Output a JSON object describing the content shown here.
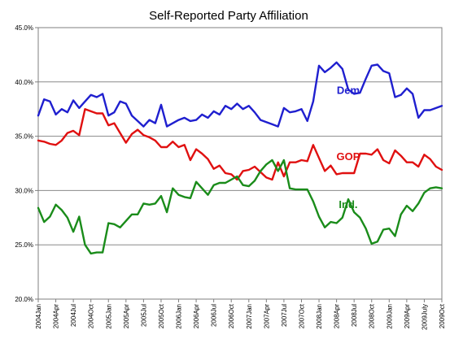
{
  "chart_data": {
    "type": "line",
    "title": "Self-Reported Party Affiliation",
    "xlabel": "",
    "ylabel": "",
    "ylim": [
      20,
      45
    ],
    "y_ticks": [
      20,
      25,
      30,
      35,
      40,
      45
    ],
    "y_tick_labels": [
      "20.0%",
      "25.0%",
      "30.0%",
      "35.0%",
      "40.0%",
      "45.0%"
    ],
    "grid": "horizontal",
    "x_start": "2004-01",
    "x_end": "2009-10",
    "x_ticks": [
      {
        "t": "2004-01",
        "label": "2004Jan"
      },
      {
        "t": "2004-04",
        "label": "2004Apr"
      },
      {
        "t": "2004-07",
        "label": "2004Jul"
      },
      {
        "t": "2004-10",
        "label": "2004Oct"
      },
      {
        "t": "2005-01",
        "label": "2005Jan"
      },
      {
        "t": "2005-04",
        "label": "2005Apr"
      },
      {
        "t": "2005-07",
        "label": "2005Jul"
      },
      {
        "t": "2005-10",
        "label": "2005Oct"
      },
      {
        "t": "2006-01",
        "label": "2006Jan"
      },
      {
        "t": "2006-04",
        "label": "2006Apr"
      },
      {
        "t": "2006-07",
        "label": "2006Jul"
      },
      {
        "t": "2006-10",
        "label": "2006Oct"
      },
      {
        "t": "2007-01",
        "label": "2007Jan"
      },
      {
        "t": "2007-04",
        "label": "2007Apr"
      },
      {
        "t": "2007-07",
        "label": "2007Jul"
      },
      {
        "t": "2007-10",
        "label": "2007Oct"
      },
      {
        "t": "2008-01",
        "label": "2008Jan"
      },
      {
        "t": "2008-04",
        "label": "2008Apr"
      },
      {
        "t": "2008-07",
        "label": "2008Jul"
      },
      {
        "t": "2008-10",
        "label": "2008Oct"
      },
      {
        "t": "2009-01",
        "label": "2009Jan"
      },
      {
        "t": "2009-04",
        "label": "2009Apr"
      },
      {
        "t": "2009-07",
        "label": "2009July"
      },
      {
        "t": "2009-10",
        "label": "2009Oct"
      }
    ],
    "series": [
      {
        "name": "Dem",
        "color": "#1f1fcf",
        "label_at": {
          "t": "2008-06",
          "v": 39.2
        },
        "points": [
          [
            "2004-01",
            36.9
          ],
          [
            "2004-02",
            38.4
          ],
          [
            "2004-03",
            38.2
          ],
          [
            "2004-04",
            37.0
          ],
          [
            "2004-05",
            37.5
          ],
          [
            "2004-06",
            37.2
          ],
          [
            "2004-07",
            38.3
          ],
          [
            "2004-08",
            37.6
          ],
          [
            "2004-09",
            38.2
          ],
          [
            "2004-10",
            38.8
          ],
          [
            "2004-11",
            38.6
          ],
          [
            "2004-12",
            38.9
          ],
          [
            "2005-01",
            36.9
          ],
          [
            "2005-02",
            37.2
          ],
          [
            "2005-03",
            38.2
          ],
          [
            "2005-04",
            38.0
          ],
          [
            "2005-05",
            36.9
          ],
          [
            "2005-06",
            36.4
          ],
          [
            "2005-07",
            35.9
          ],
          [
            "2005-08",
            36.5
          ],
          [
            "2005-09",
            36.2
          ],
          [
            "2005-10",
            37.9
          ],
          [
            "2005-11",
            35.9
          ],
          [
            "2005-12",
            36.2
          ],
          [
            "2006-01",
            36.5
          ],
          [
            "2006-02",
            36.7
          ],
          [
            "2006-03",
            36.4
          ],
          [
            "2006-04",
            36.5
          ],
          [
            "2006-05",
            37.0
          ],
          [
            "2006-06",
            36.7
          ],
          [
            "2006-07",
            37.3
          ],
          [
            "2006-08",
            37.0
          ],
          [
            "2006-09",
            37.8
          ],
          [
            "2006-10",
            37.5
          ],
          [
            "2006-11",
            38.0
          ],
          [
            "2006-12",
            37.5
          ],
          [
            "2007-01",
            37.8
          ],
          [
            "2007-02",
            37.2
          ],
          [
            "2007-03",
            36.5
          ],
          [
            "2007-04",
            36.3
          ],
          [
            "2007-05",
            36.1
          ],
          [
            "2007-06",
            35.9
          ],
          [
            "2007-07",
            37.6
          ],
          [
            "2007-08",
            37.2
          ],
          [
            "2007-09",
            37.3
          ],
          [
            "2007-10",
            37.5
          ],
          [
            "2007-11",
            36.4
          ],
          [
            "2007-12",
            38.2
          ],
          [
            "2008-01",
            41.5
          ],
          [
            "2008-02",
            40.9
          ],
          [
            "2008-03",
            41.3
          ],
          [
            "2008-04",
            41.8
          ],
          [
            "2008-05",
            41.2
          ],
          [
            "2008-06",
            39.3
          ],
          [
            "2008-07",
            38.9
          ],
          [
            "2008-08",
            39.0
          ],
          [
            "2008-09",
            40.3
          ],
          [
            "2008-10",
            41.5
          ],
          [
            "2008-11",
            41.6
          ],
          [
            "2008-12",
            41.0
          ],
          [
            "2009-01",
            40.8
          ],
          [
            "2009-02",
            38.6
          ],
          [
            "2009-03",
            38.8
          ],
          [
            "2009-04",
            39.4
          ],
          [
            "2009-05",
            38.9
          ],
          [
            "2009-06",
            36.7
          ],
          [
            "2009-07",
            37.4
          ],
          [
            "2009-08",
            37.4
          ],
          [
            "2009-09",
            37.6
          ],
          [
            "2009-10",
            37.8
          ]
        ]
      },
      {
        "name": "GOP",
        "color": "#e01010",
        "label_at": {
          "t": "2008-06",
          "v": 33.1
        },
        "points": [
          [
            "2004-01",
            34.6
          ],
          [
            "2004-02",
            34.5
          ],
          [
            "2004-03",
            34.3
          ],
          [
            "2004-04",
            34.2
          ],
          [
            "2004-05",
            34.6
          ],
          [
            "2004-06",
            35.3
          ],
          [
            "2004-07",
            35.5
          ],
          [
            "2004-08",
            35.1
          ],
          [
            "2004-09",
            37.5
          ],
          [
            "2004-10",
            37.3
          ],
          [
            "2004-11",
            37.1
          ],
          [
            "2004-12",
            37.1
          ],
          [
            "2005-01",
            36.0
          ],
          [
            "2005-02",
            36.2
          ],
          [
            "2005-03",
            35.3
          ],
          [
            "2005-04",
            34.4
          ],
          [
            "2005-05",
            35.2
          ],
          [
            "2005-06",
            35.6
          ],
          [
            "2005-07",
            35.1
          ],
          [
            "2005-08",
            34.9
          ],
          [
            "2005-09",
            34.6
          ],
          [
            "2005-10",
            34.0
          ],
          [
            "2005-11",
            34.0
          ],
          [
            "2005-12",
            34.5
          ],
          [
            "2006-01",
            34.0
          ],
          [
            "2006-02",
            34.2
          ],
          [
            "2006-03",
            32.8
          ],
          [
            "2006-04",
            33.8
          ],
          [
            "2006-05",
            33.4
          ],
          [
            "2006-06",
            32.9
          ],
          [
            "2006-07",
            32.0
          ],
          [
            "2006-08",
            32.3
          ],
          [
            "2006-09",
            31.6
          ],
          [
            "2006-10",
            31.5
          ],
          [
            "2006-11",
            31.0
          ],
          [
            "2006-12",
            31.8
          ],
          [
            "2007-01",
            31.9
          ],
          [
            "2007-02",
            32.2
          ],
          [
            "2007-03",
            31.7
          ],
          [
            "2007-04",
            31.2
          ],
          [
            "2007-05",
            31.0
          ],
          [
            "2007-06",
            32.6
          ],
          [
            "2007-07",
            31.3
          ],
          [
            "2007-08",
            32.6
          ],
          [
            "2007-09",
            32.6
          ],
          [
            "2007-10",
            32.8
          ],
          [
            "2007-11",
            32.7
          ],
          [
            "2007-12",
            34.2
          ],
          [
            "2008-01",
            33.0
          ],
          [
            "2008-02",
            31.8
          ],
          [
            "2008-03",
            32.3
          ],
          [
            "2008-04",
            31.5
          ],
          [
            "2008-05",
            31.6
          ],
          [
            "2008-06",
            31.6
          ],
          [
            "2008-07",
            31.6
          ],
          [
            "2008-08",
            33.4
          ],
          [
            "2008-09",
            33.4
          ],
          [
            "2008-10",
            33.3
          ],
          [
            "2008-11",
            33.8
          ],
          [
            "2008-12",
            32.8
          ],
          [
            "2009-01",
            32.5
          ],
          [
            "2009-02",
            33.7
          ],
          [
            "2009-03",
            33.2
          ],
          [
            "2009-04",
            32.6
          ],
          [
            "2009-05",
            32.6
          ],
          [
            "2009-06",
            32.2
          ],
          [
            "2009-07",
            33.3
          ],
          [
            "2009-08",
            32.9
          ],
          [
            "2009-09",
            32.2
          ],
          [
            "2009-10",
            31.9
          ]
        ]
      },
      {
        "name": "Ind.",
        "color": "#1a8c1a",
        "label_at": {
          "t": "2008-06",
          "v": 28.7
        },
        "points": [
          [
            "2004-01",
            28.4
          ],
          [
            "2004-02",
            27.1
          ],
          [
            "2004-03",
            27.6
          ],
          [
            "2004-04",
            28.7
          ],
          [
            "2004-05",
            28.2
          ],
          [
            "2004-06",
            27.5
          ],
          [
            "2004-07",
            26.2
          ],
          [
            "2004-08",
            27.6
          ],
          [
            "2004-09",
            25.0
          ],
          [
            "2004-10",
            24.2
          ],
          [
            "2004-11",
            24.3
          ],
          [
            "2004-12",
            24.3
          ],
          [
            "2005-01",
            27.0
          ],
          [
            "2005-02",
            26.9
          ],
          [
            "2005-03",
            26.6
          ],
          [
            "2005-04",
            27.2
          ],
          [
            "2005-05",
            27.8
          ],
          [
            "2005-06",
            27.8
          ],
          [
            "2005-07",
            28.8
          ],
          [
            "2005-08",
            28.7
          ],
          [
            "2005-09",
            28.8
          ],
          [
            "2005-10",
            29.5
          ],
          [
            "2005-11",
            28.0
          ],
          [
            "2005-12",
            30.2
          ],
          [
            "2006-01",
            29.6
          ],
          [
            "2006-02",
            29.4
          ],
          [
            "2006-03",
            29.3
          ],
          [
            "2006-04",
            30.8
          ],
          [
            "2006-05",
            30.2
          ],
          [
            "2006-06",
            29.6
          ],
          [
            "2006-07",
            30.5
          ],
          [
            "2006-08",
            30.7
          ],
          [
            "2006-09",
            30.7
          ],
          [
            "2006-10",
            31.0
          ],
          [
            "2006-11",
            31.3
          ],
          [
            "2006-12",
            30.5
          ],
          [
            "2007-01",
            30.4
          ],
          [
            "2007-02",
            30.9
          ],
          [
            "2007-03",
            31.8
          ],
          [
            "2007-04",
            32.4
          ],
          [
            "2007-05",
            32.8
          ],
          [
            "2007-06",
            31.8
          ],
          [
            "2007-07",
            32.8
          ],
          [
            "2007-08",
            30.2
          ],
          [
            "2007-09",
            30.1
          ],
          [
            "2007-10",
            30.1
          ],
          [
            "2007-11",
            30.1
          ],
          [
            "2007-12",
            29.0
          ],
          [
            "2008-01",
            27.6
          ],
          [
            "2008-02",
            26.6
          ],
          [
            "2008-03",
            27.1
          ],
          [
            "2008-04",
            27.0
          ],
          [
            "2008-05",
            27.5
          ],
          [
            "2008-06",
            29.2
          ],
          [
            "2008-07",
            28.0
          ],
          [
            "2008-08",
            27.5
          ],
          [
            "2008-09",
            26.5
          ],
          [
            "2008-10",
            25.1
          ],
          [
            "2008-11",
            25.3
          ],
          [
            "2008-12",
            26.4
          ],
          [
            "2009-01",
            26.5
          ],
          [
            "2009-02",
            25.8
          ],
          [
            "2009-03",
            27.8
          ],
          [
            "2009-04",
            28.6
          ],
          [
            "2009-05",
            28.1
          ],
          [
            "2009-06",
            28.8
          ],
          [
            "2009-07",
            29.8
          ],
          [
            "2009-08",
            30.2
          ],
          [
            "2009-09",
            30.3
          ],
          [
            "2009-10",
            30.2
          ]
        ]
      }
    ]
  }
}
